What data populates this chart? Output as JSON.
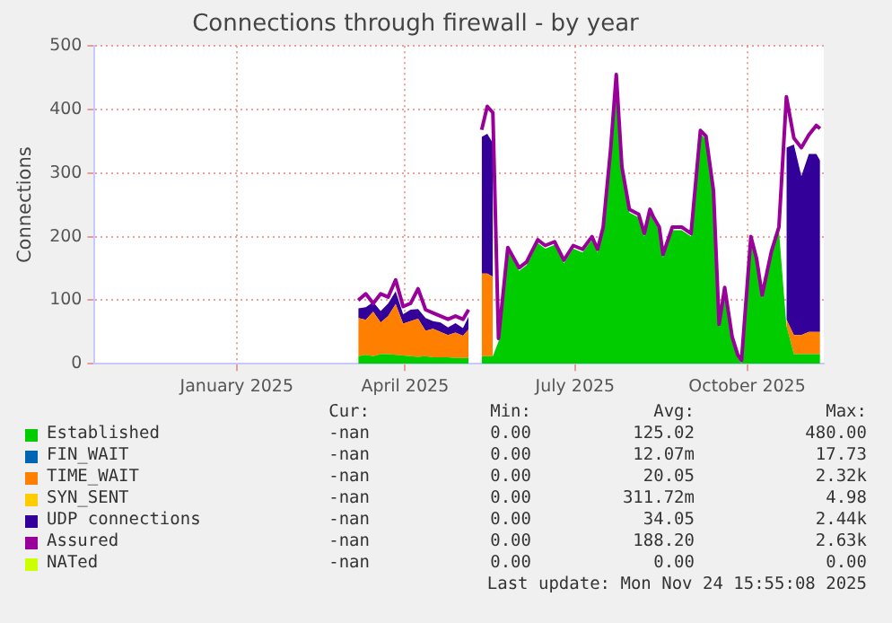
{
  "chart_data": {
    "type": "area",
    "title": "Connections through firewall - by year",
    "ylabel": "Connections",
    "stacked": true,
    "grid": true,
    "legend": "bottom",
    "marker": "none",
    "line_style": "solid",
    "xlim": [
      "2024-10-31",
      "2025-11-25"
    ],
    "xticks": [
      {
        "value": "2025-01-15",
        "label": "January 2025"
      },
      {
        "value": "2025-04-15",
        "label": "April 2025"
      },
      {
        "value": "2025-07-15",
        "label": "July 2025"
      },
      {
        "value": "2025-10-15",
        "label": "October 2025"
      }
    ],
    "ylim": [
      0,
      500
    ],
    "yticks": [
      0,
      100,
      200,
      300,
      400,
      500
    ],
    "x": [
      "2025-03-21",
      "2025-03-25",
      "2025-03-29",
      "2025-04-02",
      "2025-04-06",
      "2025-04-10",
      "2025-04-14",
      "2025-04-18",
      "2025-04-22",
      "2025-04-26",
      "2025-04-30",
      "2025-05-04",
      "2025-05-08",
      "2025-05-12",
      "2025-05-16",
      "2025-05-19",
      "2025-05-22",
      "2025-05-26",
      "2025-05-29",
      "2025-06-01",
      "2025-06-04",
      "2025-06-09",
      "2025-06-15",
      "2025-06-19",
      "2025-06-25",
      "2025-06-29",
      "2025-07-04",
      "2025-07-09",
      "2025-07-14",
      "2025-07-19",
      "2025-07-24",
      "2025-07-27",
      "2025-07-30",
      "2025-08-03",
      "2025-08-06",
      "2025-08-09",
      "2025-08-13",
      "2025-08-18",
      "2025-08-21",
      "2025-08-24",
      "2025-08-26",
      "2025-08-29",
      "2025-08-31",
      "2025-09-05",
      "2025-09-10",
      "2025-09-15",
      "2025-09-20",
      "2025-09-23",
      "2025-09-27",
      "2025-09-30",
      "2025-10-03",
      "2025-10-07",
      "2025-10-10",
      "2025-10-12",
      "2025-10-17",
      "2025-10-20",
      "2025-10-23",
      "2025-10-28",
      "2025-11-01",
      "2025-11-05",
      "2025-11-09",
      "2025-11-13",
      "2025-11-17",
      "2025-11-21",
      "2025-11-23"
    ],
    "series": [
      {
        "name": "Established",
        "color": "#00cc00",
        "values": [
          12,
          14,
          12,
          15,
          15,
          14,
          13,
          12,
          11,
          12,
          10,
          10,
          10,
          9,
          9,
          9,
          null,
          12,
          12,
          12,
          35,
          178,
          146,
          155,
          190,
          181,
          187,
          158,
          181,
          175,
          195,
          175,
          210,
          333,
          445,
          305,
          238,
          230,
          200,
          238,
          225,
          210,
          167,
          210,
          210,
          200,
          362,
          353,
          267,
          57,
          115,
          37,
          9,
          0,
          195,
          161,
          103,
          172,
          210,
          60,
          15,
          15,
          15,
          15,
          15
        ]
      },
      {
        "name": "FIN_WAIT",
        "color": "#0066b3",
        "values": [
          null,
          null,
          null,
          null,
          null,
          null,
          null,
          null,
          null,
          null,
          null,
          null,
          null,
          null,
          null,
          null,
          null,
          null,
          null,
          null,
          null,
          null,
          null,
          null,
          null,
          null,
          null,
          null,
          null,
          null,
          null,
          null,
          null,
          null,
          null,
          null,
          null,
          null,
          null,
          null,
          null,
          null,
          null,
          null,
          null,
          null,
          null,
          null,
          null,
          null,
          null,
          null,
          null,
          null,
          null,
          null,
          null,
          null,
          null,
          null,
          null,
          null,
          null,
          null,
          null
        ]
      },
      {
        "name": "TIME_WAIT",
        "color": "#ff8000",
        "values": [
          60,
          55,
          70,
          50,
          60,
          80,
          50,
          55,
          60,
          40,
          45,
          40,
          35,
          40,
          35,
          45,
          null,
          130,
          130,
          125,
          null,
          null,
          null,
          null,
          null,
          null,
          null,
          null,
          null,
          null,
          null,
          null,
          null,
          null,
          null,
          null,
          null,
          null,
          null,
          null,
          null,
          null,
          null,
          null,
          null,
          null,
          null,
          null,
          null,
          null,
          null,
          null,
          null,
          null,
          null,
          null,
          null,
          null,
          null,
          10,
          30,
          30,
          35,
          35,
          35
        ]
      },
      {
        "name": "SYN_SENT",
        "color": "#ffcc00",
        "values": [
          null,
          null,
          null,
          null,
          null,
          null,
          null,
          null,
          null,
          null,
          null,
          null,
          null,
          null,
          null,
          null,
          null,
          null,
          null,
          null,
          null,
          null,
          null,
          null,
          null,
          null,
          null,
          null,
          null,
          null,
          null,
          null,
          null,
          null,
          null,
          null,
          null,
          null,
          null,
          null,
          null,
          null,
          null,
          null,
          null,
          null,
          null,
          null,
          null,
          null,
          null,
          null,
          null,
          null,
          null,
          null,
          null,
          null,
          null,
          null,
          null,
          null,
          null,
          null,
          null
        ]
      },
      {
        "name": "UDP connections",
        "color": "#330099",
        "values": [
          15,
          20,
          15,
          18,
          20,
          20,
          15,
          18,
          15,
          20,
          12,
          15,
          12,
          15,
          12,
          20,
          null,
          215,
          220,
          210,
          null,
          null,
          null,
          null,
          null,
          null,
          null,
          null,
          null,
          null,
          null,
          null,
          null,
          null,
          null,
          null,
          null,
          null,
          null,
          null,
          null,
          null,
          null,
          null,
          null,
          null,
          null,
          null,
          null,
          null,
          null,
          null,
          null,
          null,
          null,
          null,
          null,
          null,
          null,
          270,
          300,
          250,
          280,
          280,
          270
        ]
      },
      {
        "name": "Assured",
        "color": "#990099",
        "type": "line",
        "values": [
          100,
          110,
          95,
          110,
          105,
          132,
          90,
          95,
          118,
          85,
          80,
          75,
          70,
          75,
          70,
          85,
          null,
          368,
          405,
          395,
          40,
          183,
          151,
          160,
          195,
          186,
          192,
          163,
          186,
          180,
          200,
          180,
          215,
          338,
          455,
          310,
          243,
          235,
          205,
          243,
          230,
          215,
          172,
          215,
          215,
          205,
          367,
          358,
          272,
          62,
          120,
          42,
          14,
          5,
          200,
          166,
          108,
          177,
          215,
          420,
          355,
          340,
          360,
          375,
          370
        ]
      },
      {
        "name": "NATed",
        "color": "#ccff00",
        "type": "line",
        "values": [
          null,
          null,
          null,
          null,
          null,
          null,
          null,
          null,
          null,
          null,
          null,
          null,
          null,
          null,
          null,
          null,
          null,
          null,
          null,
          null,
          null,
          null,
          null,
          null,
          null,
          null,
          null,
          null,
          null,
          null,
          null,
          null,
          null,
          null,
          null,
          null,
          null,
          null,
          null,
          null,
          null,
          null,
          null,
          null,
          null,
          null,
          null,
          null,
          null,
          null,
          null,
          null,
          null,
          null,
          null,
          null,
          null,
          null,
          null,
          null,
          null,
          null,
          null,
          null,
          null
        ]
      }
    ],
    "annotations": [
      "Cur:",
      "Min:",
      "Avg:",
      "Max:",
      "-nan",
      "0.00",
      "125.02",
      "480.00",
      "-nan",
      "0.00",
      "12.07m",
      "17.73",
      "-nan",
      "0.00",
      "20.05",
      "2.32k",
      "-nan",
      "0.00",
      "311.72m",
      "4.98",
      "-nan",
      "0.00",
      "34.05",
      "2.44k",
      "-nan",
      "0.00",
      "188.20",
      "2.63k",
      "-nan",
      "0.00",
      "0.00",
      "0.00",
      "Last update: Mon Nov 24 15:55:08 2025"
    ]
  }
}
